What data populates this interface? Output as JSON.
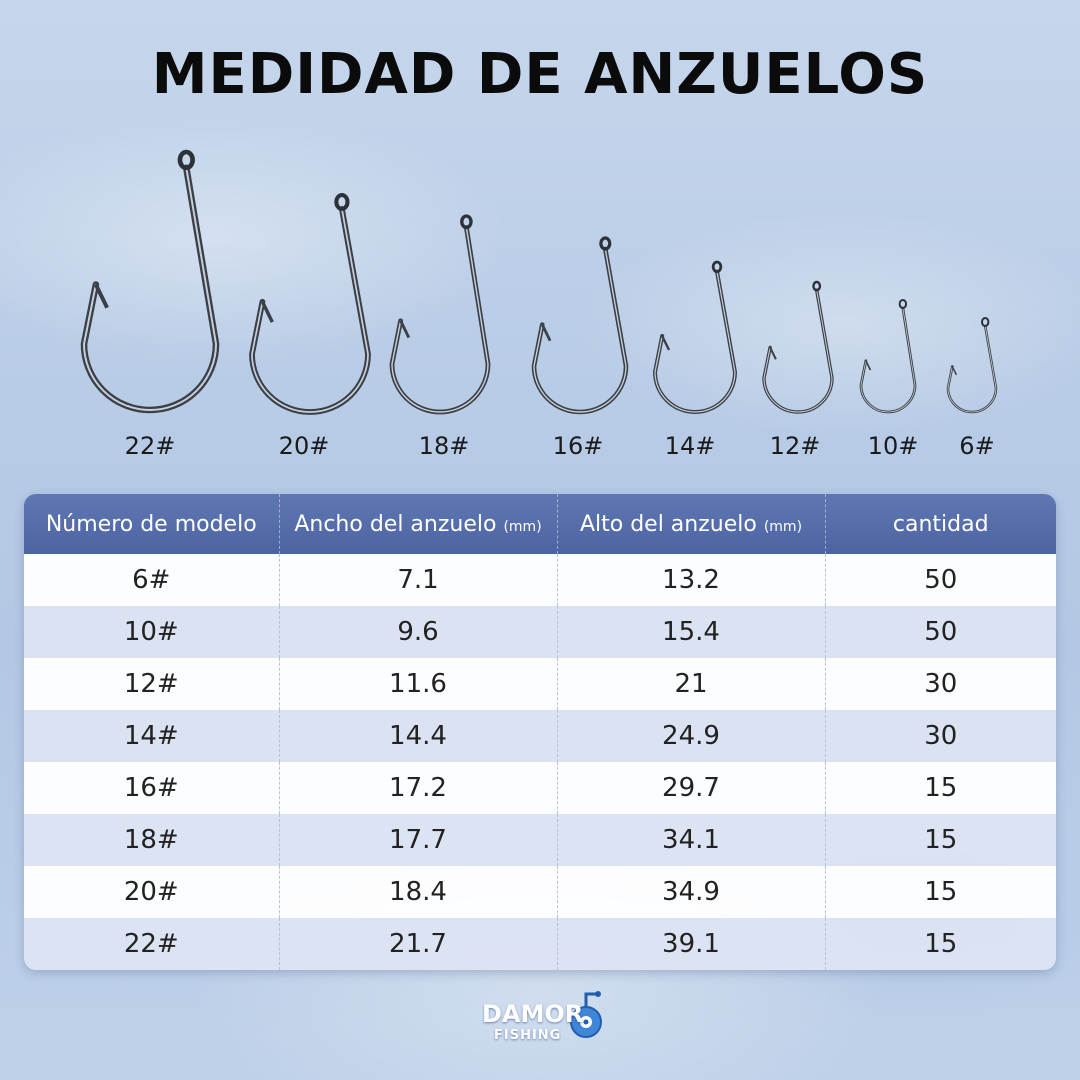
{
  "title": "MEDIDAD DE ANZUELOS",
  "hooks": [
    "22#",
    "20#",
    "18#",
    "16#",
    "14#",
    "12#",
    "10#",
    "6#"
  ],
  "table": {
    "headers": {
      "model": "Número de modelo",
      "width": "Ancho del anzuelo",
      "width_unit": "(mm)",
      "height": "Alto del anzuelo",
      "height_unit": "(mm)",
      "qty": "cantidad"
    },
    "rows": [
      {
        "model": "6#",
        "width": "7.1",
        "height": "13.2",
        "qty": "50"
      },
      {
        "model": "10#",
        "width": "9.6",
        "height": "15.4",
        "qty": "50"
      },
      {
        "model": "12#",
        "width": "11.6",
        "height": "21",
        "qty": "30"
      },
      {
        "model": "14#",
        "width": "14.4",
        "height": "24.9",
        "qty": "30"
      },
      {
        "model": "16#",
        "width": "17.2",
        "height": "29.7",
        "qty": "15"
      },
      {
        "model": "18#",
        "width": "17.7",
        "height": "34.1",
        "qty": "15"
      },
      {
        "model": "20#",
        "width": "18.4",
        "height": "34.9",
        "qty": "15"
      },
      {
        "model": "22#",
        "width": "21.7",
        "height": "39.1",
        "qty": "15"
      }
    ]
  },
  "logo": {
    "name": "DAMOR",
    "sub": "FISHING"
  },
  "colors": {
    "header_bg": "#5169a6",
    "row_odd": "#ffffff",
    "row_even": "#dde4f2"
  }
}
